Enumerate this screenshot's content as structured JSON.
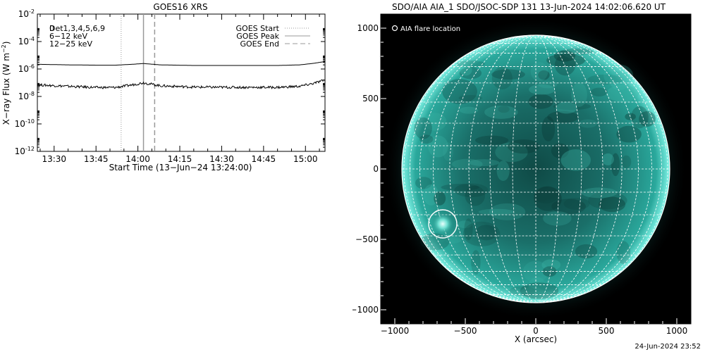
{
  "goes": {
    "title": "GOES16 XRS",
    "ylabel_main": "X−ray Flux (W m",
    "ylabel_sup": "−2",
    "ylabel_end": ")",
    "xlabel": "Start Time (13−Jun−24 13:24:00)",
    "det_label": "Det1,3,4,5,6,9",
    "det_label_overprint": "0",
    "band_6_12": "6−12 keV",
    "band_12_25": "12−25 keV",
    "color_6_12": "#ff00ff",
    "color_12_25": "#00ff00",
    "legend": [
      {
        "label": "GOES Start",
        "style": "dotted"
      },
      {
        "label": "GOES Peak",
        "style": "solid"
      },
      {
        "label": "GOES End",
        "style": "dashed"
      }
    ]
  },
  "aia": {
    "title": "SDO/AIA AIA_1 SDO/JSOC-SDP 131 13-Jun-2024 14:02:06.620 UT",
    "legend_label": "AIA flare location",
    "xlabel": "X (arcsec)",
    "disk_color": "#1a8a80"
  },
  "timestamp": "24-Jun-2024 23:52",
  "chart_data": [
    {
      "type": "line",
      "title": "GOES16 XRS",
      "xlabel": "Start Time (13-Jun-24 13:24:00)",
      "ylabel": "X-ray Flux (W m^-2)",
      "y_scale": "log",
      "xlim": [
        "13:24",
        "15:07"
      ],
      "ylim": [
        1e-12,
        0.01
      ],
      "x_ticks": [
        "13:30",
        "13:45",
        "14:00",
        "14:15",
        "14:30",
        "14:45",
        "15:00"
      ],
      "y_ticks": [
        1e-12,
        1e-10,
        1e-08,
        1e-06,
        0.0001,
        0.01
      ],
      "y_tick_labels": [
        "10^-12",
        "10^-10",
        "10^-8",
        "10^-6",
        "10^-4",
        "10^-2"
      ],
      "markers": {
        "GOES Start": "13:54",
        "GOES Peak": "14:02",
        "GOES End": "14:06"
      },
      "series": [
        {
          "name": "6-12 keV",
          "x": [
            "13:24",
            "13:35",
            "13:45",
            "13:52",
            "13:58",
            "14:02",
            "14:08",
            "14:20",
            "14:35",
            "14:50",
            "14:58",
            "15:03",
            "15:07"
          ],
          "values": [
            2.2e-06,
            2e-06,
            1.9e-06,
            1.9e-06,
            2.2e-06,
            2.5e-06,
            2e-06,
            1.8e-06,
            1.8e-06,
            1.8e-06,
            2e-06,
            2.6e-06,
            3.5e-06
          ]
        },
        {
          "name": "12-25 keV",
          "x": [
            "13:24",
            "13:35",
            "13:45",
            "13:52",
            "13:58",
            "14:02",
            "14:08",
            "14:20",
            "14:35",
            "14:50",
            "14:58",
            "15:03",
            "15:07"
          ],
          "values": [
            7e-08,
            5.5e-08,
            4.5e-08,
            4.5e-08,
            7e-08,
            1e-07,
            6e-08,
            4.8e-08,
            4.6e-08,
            4.6e-08,
            5.5e-08,
            9e-08,
            1.6e-07
          ]
        }
      ]
    },
    {
      "type": "image",
      "title": "SDO/AIA AIA_1 SDO/JSOC-SDP 131 13-Jun-2024 14:02:06.620 UT",
      "xlabel": "X (arcsec)",
      "xlim": [
        -1100,
        1100
      ],
      "ylim": [
        -1100,
        1100
      ],
      "x_ticks": [
        -1000,
        -500,
        0,
        500,
        1000
      ],
      "y_ticks": [
        -1000,
        -500,
        0,
        500,
        1000
      ],
      "solar_radius_arcsec": 950,
      "flare_location_arcsec": {
        "x": -660,
        "y": -390
      },
      "flare_circle_radius_arcsec": 100,
      "grid_spacing_deg": 10
    }
  ]
}
